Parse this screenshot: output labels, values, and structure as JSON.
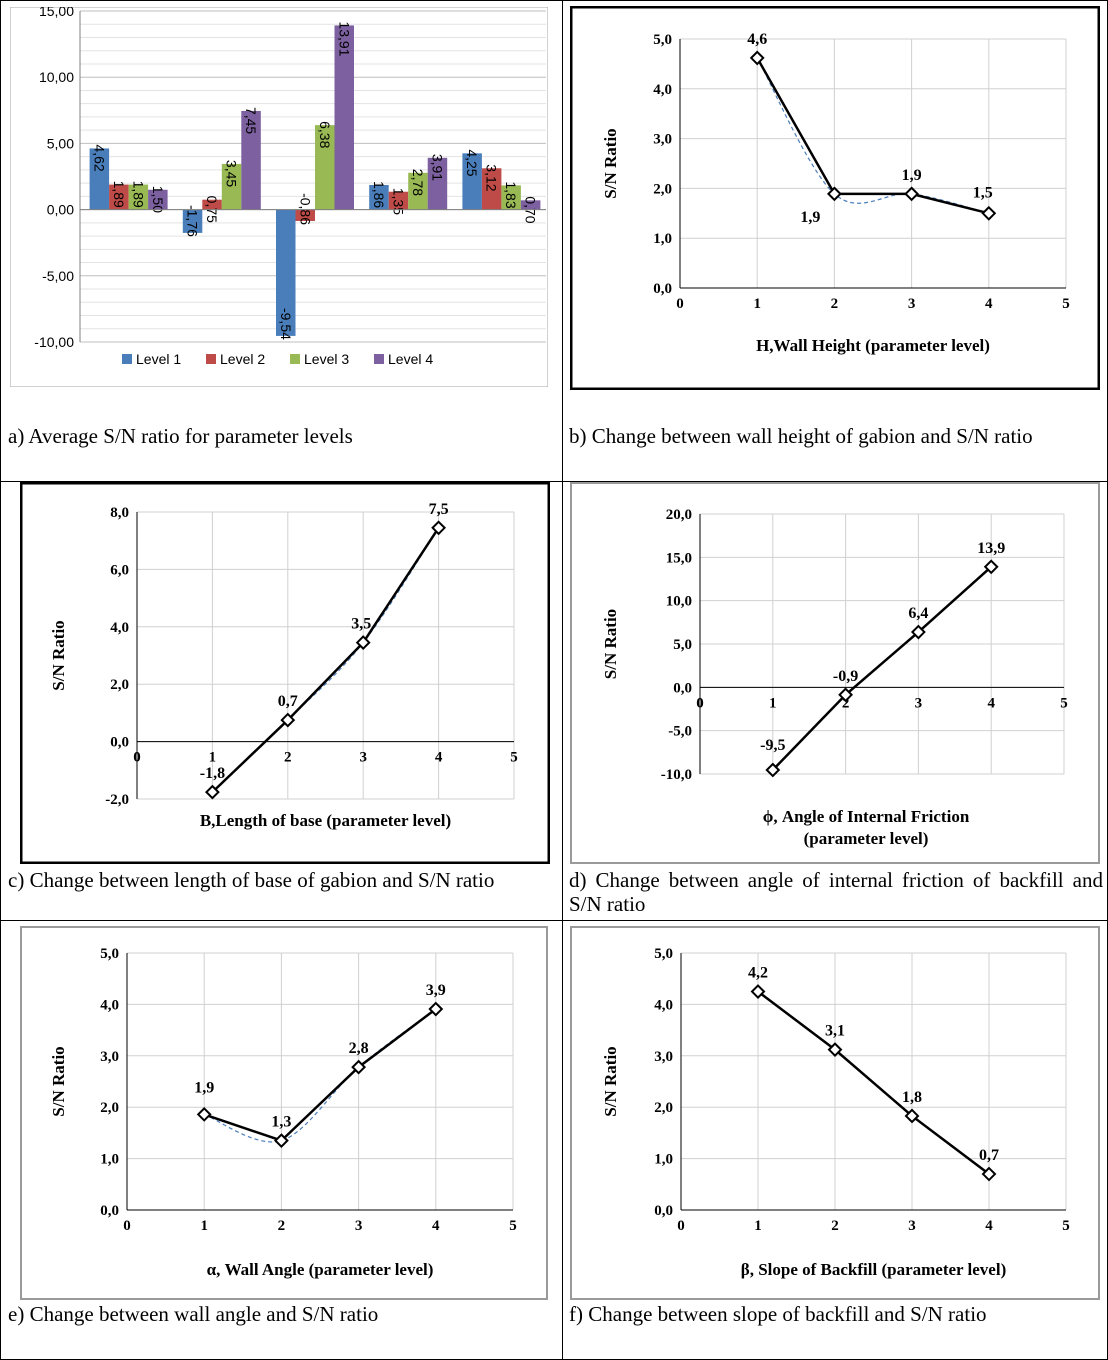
{
  "colors": {
    "level_1": "#4a7ebb",
    "level_2": "#be4b48",
    "level_3": "#98b954",
    "level_4": "#7d60a0",
    "trend": "#4a7ebb"
  },
  "captions": {
    "a": "a) Average S/N ratio for parameter levels",
    "b": "b) Change between wall height of gabion and S/N ratio",
    "c": "c) Change between length of base of gabion and S/N ratio",
    "d": "d) Change between angle of internal friction of backfill and S/N ratio",
    "e": "e) Change between wall angle and S/N ratio",
    "f": "f) Change between slope of backfill and S/N ratio"
  },
  "chart_data": [
    {
      "id": "a",
      "type": "bar",
      "categories": [
        "",
        "",
        "",
        "",
        ""
      ],
      "series": [
        {
          "name": "Level 1",
          "values": [
            4.62,
            -1.76,
            -9.54,
            1.86,
            4.25
          ],
          "labels": [
            "4,62",
            "-1,76",
            "-9,54",
            "1,86",
            "4,25"
          ]
        },
        {
          "name": "Level 2",
          "values": [
            1.89,
            0.75,
            -0.86,
            1.35,
            3.12
          ],
          "labels": [
            "1,89",
            "0,75",
            "-0,86",
            "1,35",
            "3,12"
          ]
        },
        {
          "name": "Level 3",
          "values": [
            1.89,
            3.45,
            6.38,
            2.78,
            1.83
          ],
          "labels": [
            "1,89",
            "3,45",
            "6,38",
            "2,78",
            "1,83"
          ]
        },
        {
          "name": "Level 4",
          "values": [
            1.5,
            7.45,
            13.91,
            3.91,
            0.7
          ],
          "labels": [
            "1,50",
            "7,45",
            "13,91",
            "3,91",
            "0,70"
          ]
        }
      ],
      "ylim": [
        -10,
        15
      ],
      "yticks": [
        -10,
        -5,
        0,
        5,
        10,
        15
      ],
      "ytick_labels": [
        "-10,00",
        "-5,00",
        "0,00",
        "5,00",
        "10,00",
        "15,00"
      ],
      "grid": true,
      "legend": "bottom"
    },
    {
      "id": "b",
      "type": "line",
      "x": [
        1,
        2,
        3,
        4
      ],
      "y": [
        4.62,
        1.89,
        1.89,
        1.5
      ],
      "labels": [
        "4,6",
        "1,9",
        "1,9",
        "1,5"
      ],
      "xlabel": "H,Wall Height (parameter level)",
      "ylabel": "S/N Ratio",
      "xlim": [
        0,
        5
      ],
      "ylim": [
        0,
        5
      ],
      "xticks": [
        "0",
        "1",
        "2",
        "3",
        "4",
        "5"
      ],
      "yticks": [
        0,
        1,
        2,
        3,
        4,
        5
      ],
      "ytick_labels": [
        "0,0",
        "1,0",
        "2,0",
        "3,0",
        "4,0",
        "5,0"
      ],
      "grid": true,
      "trendline": "dashed"
    },
    {
      "id": "c",
      "type": "line",
      "x": [
        1,
        2,
        3,
        4
      ],
      "y": [
        -1.76,
        0.75,
        3.45,
        7.45
      ],
      "labels": [
        "-1,8",
        "0,7",
        "3,5",
        "7,5"
      ],
      "xlabel": "B,Length of base (parameter level)",
      "ylabel": "S/N Ratio",
      "xlim": [
        0,
        5
      ],
      "ylim": [
        -2,
        8
      ],
      "xticks": [
        "0",
        "1",
        "2",
        "3",
        "4",
        "5"
      ],
      "yticks": [
        -2,
        0,
        2,
        4,
        6,
        8
      ],
      "ytick_labels": [
        "-2,0",
        "0,0",
        "2,0",
        "4,0",
        "6,0",
        "8,0"
      ],
      "grid": true,
      "trendline": "dashed"
    },
    {
      "id": "d",
      "type": "line",
      "x": [
        1,
        2,
        3,
        4
      ],
      "y": [
        -9.54,
        -0.86,
        6.38,
        13.91
      ],
      "labels": [
        "-9,5",
        "-0,9",
        "6,4",
        "13,9"
      ],
      "xlabel": "ϕ, Angle of Internal Friction",
      "xlabel2": "(parameter level)",
      "ylabel": "S/N Ratio",
      "xlim": [
        0,
        5
      ],
      "ylim": [
        -10,
        20
      ],
      "xticks": [
        "0",
        "1",
        "2",
        "3",
        "4",
        "5"
      ],
      "yticks": [
        -10,
        -5,
        0,
        5,
        10,
        15,
        20
      ],
      "ytick_labels": [
        "-10,0",
        "-5,0",
        "0,0",
        "5,0",
        "10,0",
        "15,0",
        "20,0"
      ],
      "grid": true,
      "trendline": "dashed"
    },
    {
      "id": "e",
      "type": "line",
      "x": [
        1,
        2,
        3,
        4
      ],
      "y": [
        1.86,
        1.35,
        2.78,
        3.91
      ],
      "labels": [
        "1,9",
        "1,3",
        "2,8",
        "3,9"
      ],
      "xlabel": "α, Wall Angle (parameter level)",
      "ylabel": "S/N Ratio",
      "xlim": [
        0,
        5
      ],
      "ylim": [
        0,
        5
      ],
      "xticks": [
        "0",
        "1",
        "2",
        "3",
        "4",
        "5"
      ],
      "yticks": [
        0,
        1,
        2,
        3,
        4,
        5
      ],
      "ytick_labels": [
        "0,0",
        "1,0",
        "2,0",
        "3,0",
        "4,0",
        "5,0"
      ],
      "grid": true,
      "trendline": "dashed"
    },
    {
      "id": "f",
      "type": "line",
      "x": [
        1,
        2,
        3,
        4
      ],
      "y": [
        4.25,
        3.12,
        1.83,
        0.7
      ],
      "labels": [
        "4,2",
        "3,1",
        "1,8",
        "0,7"
      ],
      "xlabel": "β, Slope of Backfill (parameter level)",
      "ylabel": "S/N Ratio",
      "xlim": [
        0,
        5
      ],
      "ylim": [
        0,
        5
      ],
      "xticks": [
        "0",
        "1",
        "2",
        "3",
        "4",
        "5"
      ],
      "yticks": [
        0,
        1,
        2,
        3,
        4,
        5
      ],
      "ytick_labels": [
        "0,0",
        "1,0",
        "2,0",
        "3,0",
        "4,0",
        "5,0"
      ],
      "grid": true,
      "trendline": "dashed"
    }
  ]
}
